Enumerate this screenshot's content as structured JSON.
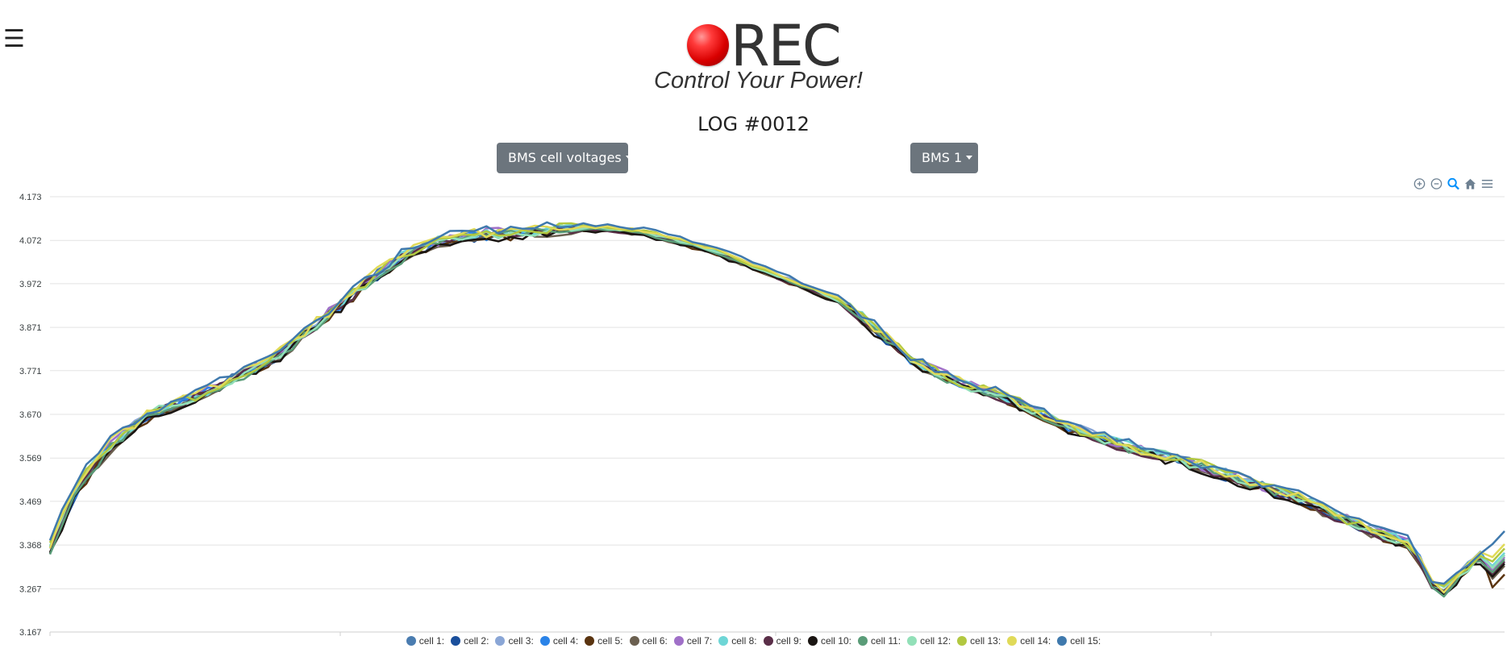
{
  "header": {
    "menu_icon": "hamburger-menu-icon",
    "logo_text": "REC",
    "logo_slogan": "Control Your Power!",
    "page_title": "LOG #0012"
  },
  "controls": {
    "chart_type_label": "BMS cell voltages",
    "bms_label": "BMS 1"
  },
  "toolbar": {
    "icons": [
      "zoom-in-icon",
      "zoom-out-icon",
      "zoom-selection-icon",
      "home-reset-icon",
      "menu-icon"
    ],
    "active_color": "#008ffb",
    "inactive_color": "#6e8192"
  },
  "chart_data": {
    "type": "line",
    "title": "",
    "xlabel": "",
    "ylabel": "",
    "ylim": [
      3.167,
      4.173
    ],
    "yticks": [
      4.173,
      4.072,
      3.972,
      3.871,
      3.771,
      3.67,
      3.569,
      3.469,
      3.368,
      3.267,
      3.167
    ],
    "x_points": 121,
    "x": [
      0,
      4,
      8,
      10,
      14,
      18,
      22,
      26,
      30,
      34,
      38,
      42,
      46,
      50,
      54,
      58,
      62,
      66,
      70,
      74,
      78,
      84,
      90,
      100,
      110,
      120,
      130,
      132,
      135,
      138,
      142,
      146,
      150,
      154,
      158,
      162,
      166,
      170,
      174,
      178,
      182,
      186,
      190,
      194,
      198,
      202,
      206,
      210,
      216,
      220
    ],
    "base_values": [
      3.36,
      3.5,
      3.58,
      3.61,
      3.66,
      3.69,
      3.71,
      3.74,
      3.77,
      3.8,
      3.85,
      3.9,
      3.95,
      4.0,
      4.04,
      4.065,
      4.08,
      4.085,
      4.09,
      4.095,
      4.1,
      4.1,
      4.09,
      4.05,
      3.99,
      3.93,
      3.8,
      3.78,
      3.76,
      3.74,
      3.72,
      3.7,
      3.67,
      3.64,
      3.62,
      3.6,
      3.58,
      3.57,
      3.55,
      3.53,
      3.51,
      3.49,
      3.47,
      3.44,
      3.41,
      3.39,
      3.37,
      3.25,
      3.34,
      3.37
    ],
    "series": [
      {
        "name": "cell 1:",
        "color": "#4a7cb0",
        "offset": 0.0,
        "end": 3.345
      },
      {
        "name": "cell 2:",
        "color": "#1a4f9c",
        "offset": -0.004,
        "end": 3.33
      },
      {
        "name": "cell 3:",
        "color": "#8aa6d6",
        "offset": 0.003,
        "end": 3.35
      },
      {
        "name": "cell 4:",
        "color": "#2a83e8",
        "offset": -0.002,
        "end": 3.34
      },
      {
        "name": "cell 5:",
        "color": "#5a3410",
        "offset": -0.008,
        "end": 3.3
      },
      {
        "name": "cell 6:",
        "color": "#6b6050",
        "offset": -0.006,
        "end": 3.32
      },
      {
        "name": "cell 7:",
        "color": "#a070c8",
        "offset": 0.004,
        "end": 3.34
      },
      {
        "name": "cell 8:",
        "color": "#6ed6d6",
        "offset": 0.002,
        "end": 3.35
      },
      {
        "name": "cell 9:",
        "color": "#5a2e48",
        "offset": -0.005,
        "end": 3.33
      },
      {
        "name": "cell 10:",
        "color": "#1a1512",
        "offset": -0.01,
        "end": 3.325
      },
      {
        "name": "cell 11:",
        "color": "#5a9c78",
        "offset": -0.003,
        "end": 3.335
      },
      {
        "name": "cell 12:",
        "color": "#92e0b8",
        "offset": 0.001,
        "end": 3.345
      },
      {
        "name": "cell 13:",
        "color": "#b2c840",
        "offset": 0.005,
        "end": 3.36
      },
      {
        "name": "cell 14:",
        "color": "#e0da58",
        "offset": 0.006,
        "end": 3.37
      },
      {
        "name": "cell 15:",
        "color": "#3f79ad",
        "offset": 0.012,
        "end": 3.4
      }
    ]
  }
}
